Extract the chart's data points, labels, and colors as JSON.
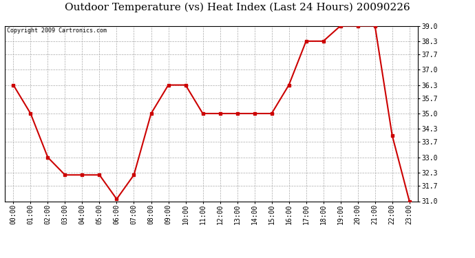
{
  "title": "Outdoor Temperature (vs) Heat Index (Last 24 Hours) 20090226",
  "copyright_text": "Copyright 2009 Cartronics.com",
  "x_labels": [
    "00:00",
    "01:00",
    "02:00",
    "03:00",
    "04:00",
    "05:00",
    "06:00",
    "07:00",
    "08:00",
    "09:00",
    "10:00",
    "11:00",
    "12:00",
    "13:00",
    "14:00",
    "15:00",
    "16:00",
    "17:00",
    "18:00",
    "19:00",
    "20:00",
    "21:00",
    "22:00",
    "23:00"
  ],
  "y_values": [
    36.3,
    35.0,
    33.0,
    32.2,
    32.2,
    32.2,
    31.1,
    32.2,
    35.0,
    36.3,
    36.3,
    35.0,
    35.0,
    35.0,
    35.0,
    35.0,
    36.3,
    38.3,
    38.3,
    39.0,
    39.0,
    39.0,
    34.0,
    31.0
  ],
  "line_color": "#cc0000",
  "marker": "s",
  "marker_size": 3,
  "background_color": "#ffffff",
  "grid_color": "#aaaaaa",
  "ylim_min": 31.0,
  "ylim_max": 39.0,
  "yticks": [
    31.0,
    31.7,
    32.3,
    33.0,
    33.7,
    34.3,
    35.0,
    35.7,
    36.3,
    37.0,
    37.7,
    38.3,
    39.0
  ],
  "title_fontsize": 11,
  "copyright_fontsize": 6,
  "tick_fontsize": 7,
  "line_width": 1.5
}
